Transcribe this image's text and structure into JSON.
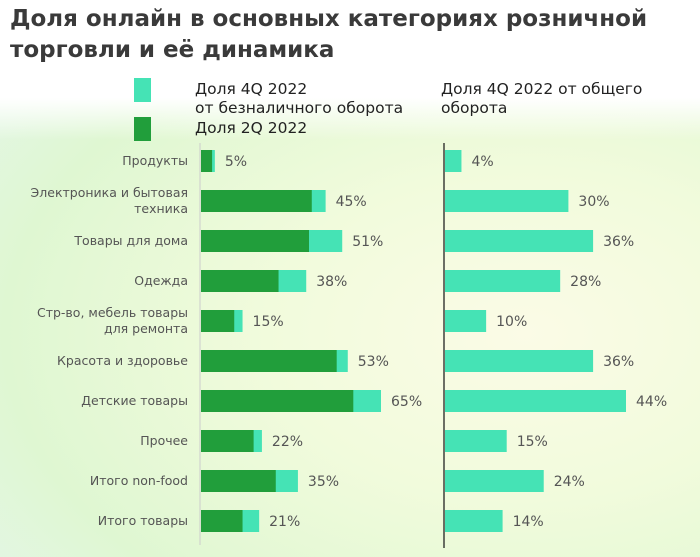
{
  "title_line1": "Доля онлайн в основных категориях розничной",
  "title_line2": "торговли и её динамика",
  "colors": {
    "light": "#45e3b5",
    "dark": "#219e3b"
  },
  "chart_data": [
    {
      "type": "bar",
      "stacked_overlay": true,
      "legend": [
        {
          "name": "Доля 4Q 2022",
          "name2": "от безналичного оборота",
          "color": "#45e3b5"
        },
        {
          "name": "Доля 2Q 2022",
          "color": "#219e3b"
        }
      ],
      "categories": [
        "Продукты",
        "Электроника и бытовая техника",
        "Товары для дома",
        "Одежда",
        "Стр-во, мебель товары для ремонта",
        "Красота и здоровье",
        "Детские товары",
        "Прочее",
        "Итого non-food",
        "Итого товары"
      ],
      "series": [
        {
          "name": "Доля 4Q 2022 от безналичного оборота",
          "values": [
            5,
            45,
            51,
            38,
            15,
            53,
            65,
            22,
            35,
            21
          ]
        },
        {
          "name": "Доля 2Q 2022",
          "values": [
            4,
            40,
            39,
            28,
            12,
            49,
            55,
            19,
            27,
            15
          ]
        }
      ],
      "data_labels": [
        "5%",
        "45%",
        "51%",
        "38%",
        "15%",
        "53%",
        "65%",
        "22%",
        "35%",
        "21%"
      ]
    },
    {
      "type": "bar",
      "title_line1": "Доля 4Q 2022 от общего",
      "title_line2": "оборота",
      "categories": [
        "Продукты",
        "Электроника и бытовая техника",
        "Товары для дома",
        "Одежда",
        "Стр-во, мебель товары для ремонта",
        "Красота и здоровье",
        "Детские товары",
        "Прочее",
        "Итого non-food",
        "Итого товары"
      ],
      "values": [
        4,
        30,
        36,
        28,
        10,
        36,
        44,
        15,
        24,
        14
      ],
      "data_labels": [
        "4%",
        "30%",
        "36%",
        "28%",
        "10%",
        "36%",
        "44%",
        "15%",
        "24%",
        "14%"
      ]
    }
  ]
}
